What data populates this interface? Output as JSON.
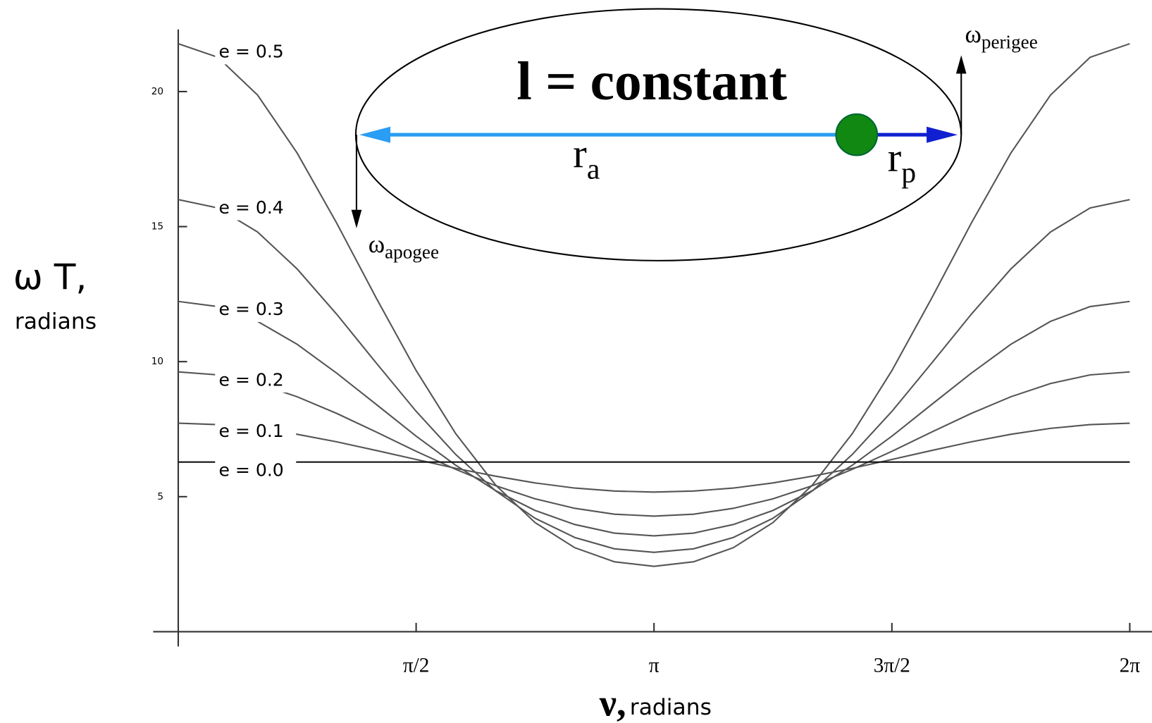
{
  "chart_data": {
    "type": "line",
    "y_label": "ω T,",
    "y_label_unit": "radians",
    "x_label": "ν,",
    "x_label_unit": "radians",
    "x": [
      0,
      0.2618,
      0.5236,
      0.7854,
      1.0472,
      1.309,
      1.5708,
      1.8326,
      2.0944,
      2.3562,
      2.618,
      2.8798,
      3.1416,
      3.4034,
      3.6652,
      3.927,
      4.1888,
      4.4506,
      4.7124,
      4.9742,
      5.236,
      5.4978,
      5.7596,
      6.0214,
      6.2832
    ],
    "series": [
      {
        "name": "e = 0.5",
        "color": "#555555",
        "values": [
          21.77,
          21.27,
          19.87,
          17.72,
          15.12,
          12.34,
          9.67,
          7.33,
          5.44,
          4.04,
          3.11,
          2.59,
          2.42,
          2.59,
          3.11,
          4.04,
          5.44,
          7.33,
          9.67,
          12.34,
          15.12,
          17.72,
          19.87,
          21.27,
          21.77
        ]
      },
      {
        "name": "e = 0.4",
        "color": "#555555",
        "values": [
          16.0,
          15.69,
          14.8,
          13.43,
          11.75,
          9.94,
          8.16,
          6.56,
          5.22,
          4.2,
          3.49,
          3.07,
          2.94,
          3.07,
          3.49,
          4.2,
          5.22,
          6.56,
          8.16,
          9.94,
          11.75,
          13.43,
          14.8,
          15.69,
          16.0
        ]
      },
      {
        "name": "e = 0.3",
        "color": "#555555",
        "values": [
          12.23,
          12.04,
          11.49,
          10.64,
          9.57,
          8.41,
          7.24,
          6.16,
          5.23,
          4.49,
          3.97,
          3.65,
          3.55,
          3.65,
          3.97,
          4.49,
          5.23,
          6.16,
          7.24,
          8.41,
          9.57,
          10.64,
          11.49,
          12.04,
          12.23
        ]
      },
      {
        "name": "e = 0.2",
        "color": "#555555",
        "values": [
          9.62,
          9.51,
          9.19,
          8.7,
          8.08,
          7.39,
          6.68,
          6.01,
          5.41,
          4.92,
          4.57,
          4.35,
          4.28,
          4.35,
          4.57,
          4.92,
          5.41,
          6.01,
          6.68,
          7.39,
          8.08,
          8.7,
          9.19,
          9.51,
          9.62
        ]
      },
      {
        "name": "e = 0.1",
        "color": "#555555",
        "values": [
          7.72,
          7.67,
          7.53,
          7.31,
          7.03,
          6.71,
          6.38,
          6.05,
          5.76,
          5.51,
          5.32,
          5.21,
          5.17,
          5.21,
          5.32,
          5.51,
          5.76,
          6.05,
          6.38,
          6.71,
          7.03,
          7.31,
          7.53,
          7.67,
          7.72
        ]
      },
      {
        "name": "e = 0.0",
        "color": "#111111",
        "values": [
          6.28,
          6.28,
          6.28,
          6.28,
          6.28,
          6.28,
          6.28,
          6.28,
          6.28,
          6.28,
          6.28,
          6.28,
          6.28,
          6.28,
          6.28,
          6.28,
          6.28,
          6.28,
          6.28,
          6.28,
          6.28,
          6.28,
          6.28,
          6.28,
          6.28
        ]
      }
    ],
    "xlim": [
      0,
      6.43
    ],
    "ylim": [
      0,
      22.3
    ],
    "xticks": [
      {
        "value": 1.5708,
        "label": "π/2"
      },
      {
        "value": 3.1416,
        "label": "π"
      },
      {
        "value": 4.7124,
        "label": "3π/2"
      },
      {
        "value": 6.2832,
        "label": "2π"
      }
    ],
    "yticks": [
      5,
      10,
      15,
      20
    ],
    "grid": false,
    "inset": {
      "title": "l = constant",
      "r_apogee": {
        "text": "r",
        "sub": "a"
      },
      "r_perigee": {
        "text": "r",
        "sub": "p"
      },
      "omega_apogee": {
        "text": "ω",
        "sub": "apogee"
      },
      "omega_perigee": {
        "text": "ω",
        "sub": "perigee"
      }
    }
  }
}
